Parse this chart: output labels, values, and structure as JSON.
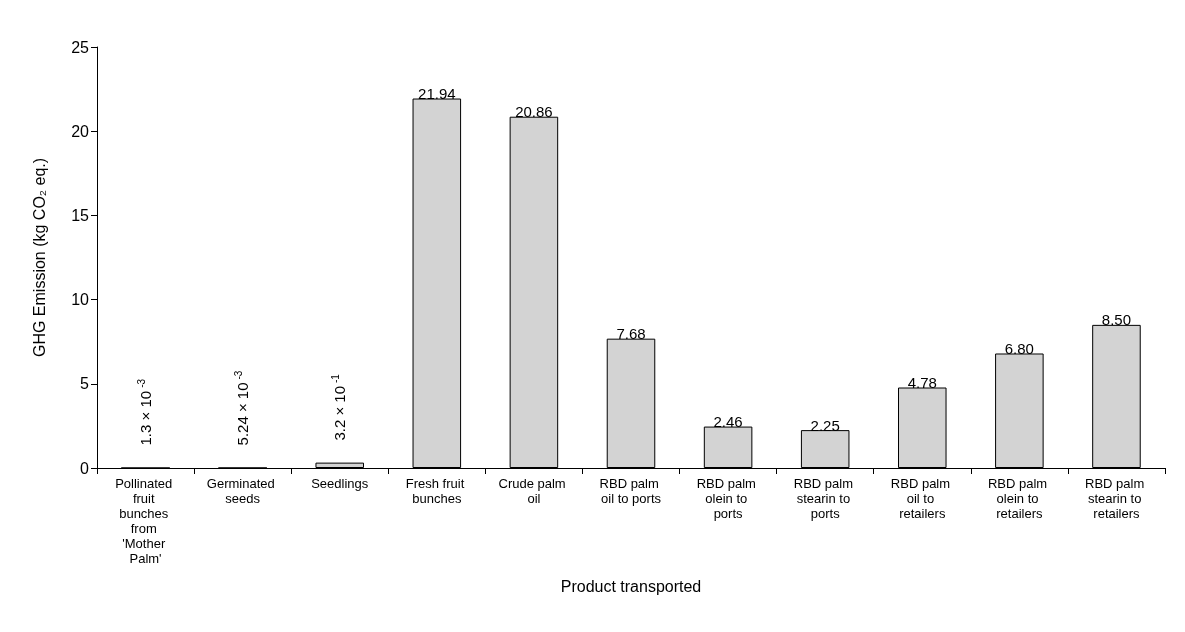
{
  "chart_data": {
    "type": "bar",
    "xlabel": "Product transported",
    "ylabel": "GHG Emission (kg CO₂ eq.)",
    "categories": [
      "Pollinated fruit bunches from 'Mother Palm'",
      "Germinated seeds",
      "Seedlings",
      "Fresh fruit bunches",
      "Crude palm oil",
      "RBD palm oil to ports",
      "RBD palm olein to ports",
      "RBD palm stearin to ports",
      "RBD palm oil to retailers",
      "RBD palm olein to retailers",
      "RBD palm stearin to retailers"
    ],
    "values": [
      0.0013,
      0.00524,
      0.32,
      21.94,
      20.86,
      7.68,
      2.46,
      2.25,
      4.78,
      6.8,
      8.5
    ],
    "value_labels": [
      "1.3 × 10$^{-3}$",
      "5.24 × 10$^{-3}$",
      "3.2 × 10$^{-1}$",
      "21.94",
      "20.86",
      "7.68",
      "2.46",
      "2.25",
      "4.78",
      "6.80",
      "8.50"
    ],
    "color": "#d3d3d3",
    "ylim": [
      0,
      25
    ],
    "yticks": [
      0,
      5,
      10,
      15,
      20,
      25
    ],
    "grid": false
  }
}
